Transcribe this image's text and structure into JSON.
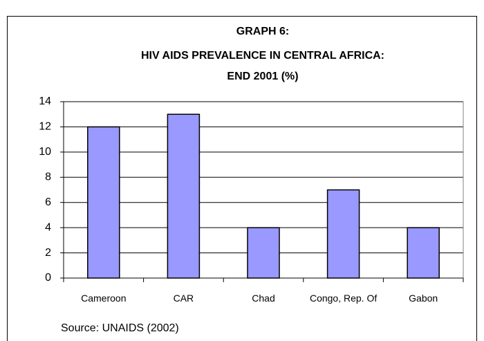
{
  "chart_data": {
    "type": "bar",
    "title": [
      "GRAPH 6:",
      "HIV AIDS PREVALENCE IN CENTRAL AFRICA:",
      "END 2001 (%)"
    ],
    "categories": [
      "Cameroon",
      "CAR",
      "Chad",
      "Congo, Rep. Of",
      "Gabon"
    ],
    "values": [
      12,
      13,
      4,
      7,
      4
    ],
    "color": "#9999ff",
    "ylim": [
      0,
      14
    ],
    "yticks": [
      0,
      2,
      4,
      6,
      8,
      10,
      12,
      14
    ],
    "grid": true,
    "source": "Source: UNAIDS (2002)"
  }
}
